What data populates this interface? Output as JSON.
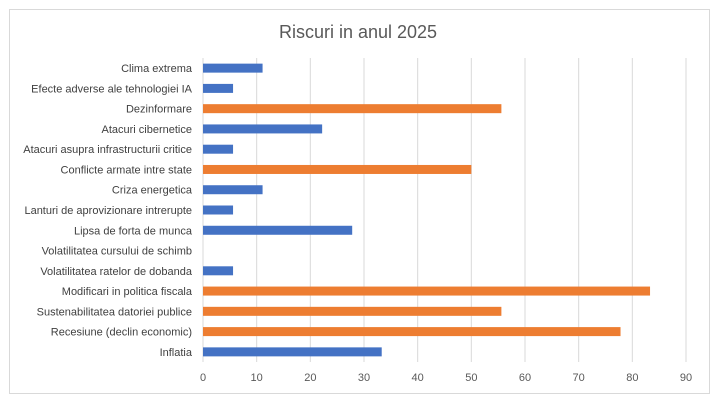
{
  "chart_data": {
    "type": "bar",
    "orientation": "horizontal",
    "title": "Riscuri in anul 2025",
    "xlabel": "",
    "ylabel": "",
    "xlim": [
      0,
      90
    ],
    "ticks": [
      0,
      10,
      20,
      30,
      40,
      50,
      60,
      70,
      80,
      90
    ],
    "grid": true,
    "legend": "none",
    "colors": {
      "blue": "#4472c4",
      "orange": "#ed7d31"
    },
    "categories": [
      "Clima extrema",
      "Efecte adverse ale tehnologiei IA",
      "Dezinformare",
      "Atacuri cibernetice",
      "Atacuri asupra infrastructurii critice",
      "Conflicte armate intre state",
      "Criza energetica",
      "Lanturi de aprovizionare intrerupte",
      "Lipsa de forta de munca",
      "Volatilitatea cursului de schimb",
      "Volatilitatea ratelor de dobanda",
      "Modificari in politica fiscala",
      "Sustenabilitatea datoriei publice",
      "Recesiune (declin economic)",
      "Inflatia"
    ],
    "values": [
      11.1,
      5.6,
      55.6,
      22.2,
      5.6,
      50.0,
      11.1,
      5.6,
      27.8,
      0,
      5.6,
      83.3,
      55.6,
      77.8,
      33.3
    ],
    "bar_colors": [
      "blue",
      "blue",
      "orange",
      "blue",
      "blue",
      "orange",
      "blue",
      "blue",
      "blue",
      "blue",
      "blue",
      "orange",
      "orange",
      "orange",
      "blue"
    ]
  }
}
